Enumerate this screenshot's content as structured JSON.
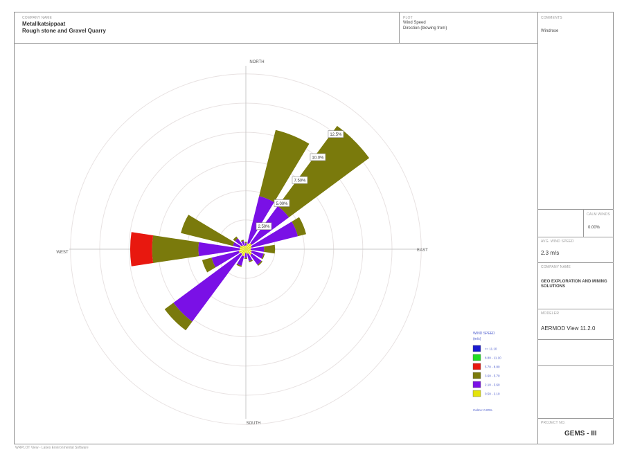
{
  "header": {
    "company_caption": "COMPANY NAME",
    "company_line1": "Metallkatsippaat",
    "company_line2": "Rough stone and Gravel Quarry",
    "plot_caption": "PLOT",
    "plot_line1": "Wind Speed",
    "plot_line2": "Direction (blowing from)"
  },
  "sidebar": {
    "comments_caption": "COMMENTS",
    "comments_value": "Windrose",
    "calms_caption": "CALM WINDS",
    "calms_value": "0.00%",
    "avg_caption": "AVG. WIND SPEED",
    "avg_value": "2.3 m/s",
    "company_caption": "COMPANY NAME",
    "company_value": "GEO EXPLORATION AND MINING SOLUTIONS",
    "model_caption": "MODELER",
    "model_value": "AERMOD View 11.2.0",
    "project_caption": "PROJECT NO.",
    "project_value": "GEMS - III"
  },
  "footer": "WRPLOT View - Lakes Environmental Software",
  "colors": {
    "calm_1": "#1a1ad0",
    "c_0_5": "#22dd22",
    "c_5_7": "#e8180f",
    "c_3_5": "#7a7a0c",
    "c_2_3": "#7a10e6",
    "c_1_2": "#e4e40a",
    "ring": "#e8e2e2",
    "axis": "#c8c8c8"
  },
  "chart_data": {
    "type": "windrose",
    "direction_labels": [
      "NORTH",
      "EAST",
      "SOUTH",
      "WEST"
    ],
    "ring_labels": [
      "2.50%",
      "5.00%",
      "7.50%",
      "10.0%",
      "12.5%"
    ],
    "legend": {
      "title": "WIND SPEED",
      "unit": "(m/s)",
      "note": "Calms: 0.00%",
      "items": [
        {
          "label": ">= 11.10",
          "color": "#1a1ad0"
        },
        {
          "label": "8.80 - 11.10",
          "color": "#22dd22"
        },
        {
          "label": "5.70 - 8.80",
          "color": "#e8180f"
        },
        {
          "label": "3.60 - 5.70",
          "color": "#7a7a0c"
        },
        {
          "label": "2.10 - 3.60",
          "color": "#7a10e6"
        },
        {
          "label": "0.50 - 2.10",
          "color": "#e4e40a"
        }
      ]
    },
    "directions_deg": [
      0,
      22.5,
      45,
      67.5,
      90,
      112.5,
      135,
      157.5,
      180,
      202.5,
      225,
      247.5,
      270,
      292.5,
      315,
      337.5
    ],
    "series": [
      {
        "name": "0.50 - 2.10",
        "color": "#e4e40a",
        "values": [
          0.3,
          0.5,
          0.6,
          0.5,
          0.4,
          0.5,
          0.6,
          0.4,
          0.3,
          0.6,
          0.5,
          0.6,
          0.5,
          0.5,
          0.4,
          0.3
        ]
      },
      {
        "name": "2.10 - 3.60",
        "color": "#7a10e6",
        "values": [
          0.2,
          4.0,
          3.8,
          3.9,
          1.1,
          1.0,
          1.0,
          0.6,
          0.4,
          0.8,
          6.9,
          2.3,
          3.4,
          0.6,
          0.7,
          0.4
        ]
      },
      {
        "name": "3.60 - 5.70",
        "color": "#7a7a0c",
        "values": [
          0.1,
          5.6,
          8.2,
          0.7,
          0.9,
          0.1,
          0.1,
          0.1,
          0.1,
          0.1,
          0.9,
          0.8,
          3.8,
          4.4,
          0.2,
          0.1
        ]
      },
      {
        "name": "5.70 - 8.80",
        "color": "#e8180f",
        "values": [
          0,
          0,
          0,
          0,
          0,
          0,
          0,
          0,
          0,
          0,
          0,
          0,
          1.8,
          0,
          0,
          0
        ]
      },
      {
        "name": "8.80 - 11.10",
        "color": "#22dd22",
        "values": [
          0,
          0,
          0,
          0,
          0,
          0,
          0,
          0,
          0,
          0,
          0,
          0,
          0,
          0,
          0,
          0
        ]
      },
      {
        "name": ">= 11.10",
        "color": "#1a1ad0",
        "values": [
          0,
          0,
          0,
          0,
          0,
          0,
          0,
          0,
          0,
          0,
          0,
          0,
          0,
          0,
          0,
          0
        ]
      }
    ],
    "rmax_percent": 14.5,
    "grid": true
  }
}
